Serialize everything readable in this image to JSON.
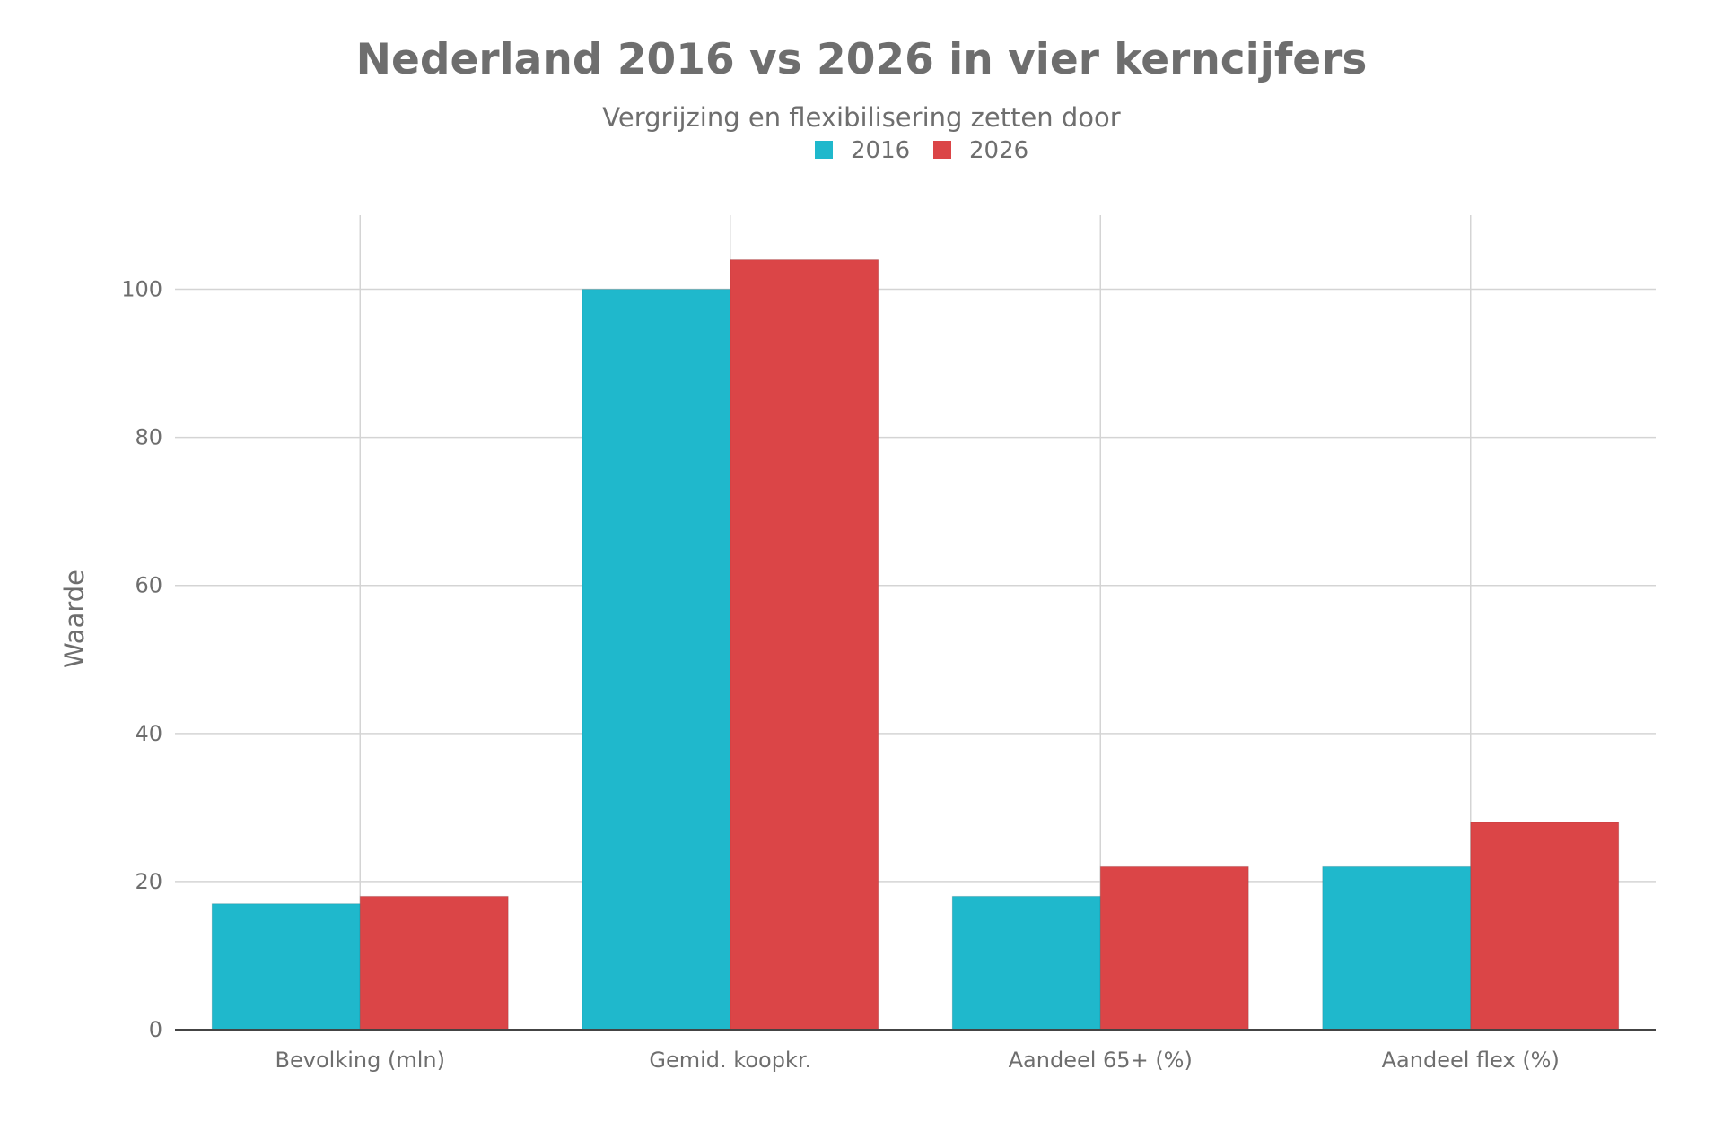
{
  "colors": {
    "series_2016": "#1fb8cc",
    "series_2026": "#db4547",
    "text": "#6e6e6e"
  },
  "chart_data": {
    "type": "bar",
    "title": "Nederland 2016 vs 2026 in vier kerncijfers",
    "subtitle": "Vergrijzing en flexibilisering zetten door",
    "ylabel": "Waarde",
    "xlabel": "",
    "ylim": [
      0,
      110
    ],
    "yticks": [
      0,
      20,
      40,
      60,
      80,
      100
    ],
    "grid": true,
    "legend_position": "top-center",
    "categories": [
      "Bevolking (mln)",
      "Gemid. koopkr.",
      "Aandeel 65+ (%)",
      "Aandeel flex (%)"
    ],
    "series": [
      {
        "name": "2016",
        "color": "#1fb8cc",
        "values": [
          17,
          100,
          18,
          22
        ]
      },
      {
        "name": "2026",
        "color": "#db4547",
        "values": [
          18,
          104,
          22,
          28
        ]
      }
    ]
  }
}
